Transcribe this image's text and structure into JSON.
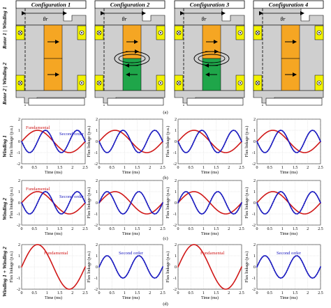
{
  "configurations": [
    {
      "title": "Configuration 1",
      "theta": "θr",
      "coil_color": "#f5a623",
      "loop": false,
      "arrows": [
        "right",
        "right"
      ]
    },
    {
      "title": "Configuration 2",
      "theta": "θr",
      "coil_color": "#f5a623",
      "loop": true,
      "arrows": [
        "right",
        "left"
      ]
    },
    {
      "title": "Configuration 3",
      "theta": "θr",
      "coil_color": "#f5a623",
      "loop": true,
      "arrows": [
        "right",
        "left"
      ]
    },
    {
      "title": "Configuration 4",
      "theta": "θr",
      "coil_color": "#f5a623",
      "loop": false,
      "arrows": [
        "right",
        "right"
      ]
    }
  ],
  "lower_coil_colors": [
    "#f5a623",
    "#1fa64a",
    "#1fa64a",
    "#f5a623"
  ],
  "row_labels": {
    "rotor1_winding1": "Rotor 1 | Winding 1",
    "rotor2_winding2": "Rotor 2 | Winding 2",
    "winding1": "Winding 1",
    "winding2": "Winding 2",
    "winding_sum": "Winding 1 + Winding 2"
  },
  "subfigure_labels": [
    "(a)",
    "(b)",
    "(c)",
    "(d)"
  ],
  "colors": {
    "fundamental": "#d01818",
    "second_order": "#1a1abf",
    "grey": "#cfcfcf",
    "yellow": "#f2f200"
  },
  "chart_data": [
    {
      "panel": "winding1-config1",
      "type": "line",
      "xlabel": "Time (ms)",
      "ylabel": "Flux linkage (p.u.)",
      "xlim": [
        0,
        2.5
      ],
      "ylim": [
        -2,
        2
      ],
      "xticks": [
        0,
        0.5,
        1,
        1.5,
        2,
        2.5
      ],
      "yticks": [
        -2,
        -1,
        0,
        1,
        2
      ],
      "series": [
        {
          "name": "Fundamental",
          "amplitude": 1,
          "cycles": 1,
          "phase_deg": 0,
          "style": "solid"
        },
        {
          "name": "Second order",
          "amplitude": 1,
          "cycles": 2,
          "phase_deg": 180,
          "style": "dotted"
        }
      ]
    },
    {
      "panel": "winding1-config2",
      "type": "line",
      "xlabel": "Time (ms)",
      "ylabel": "Flux linkage (p.u.)",
      "xlim": [
        0,
        2.5
      ],
      "ylim": [
        -2,
        2
      ],
      "xticks": [
        0,
        0.5,
        1,
        1.5,
        2,
        2.5
      ],
      "yticks": [
        -2,
        -1,
        0,
        1,
        2
      ],
      "series": [
        {
          "name": "",
          "amplitude": 1,
          "cycles": 1,
          "phase_deg": 0,
          "style": "solid"
        },
        {
          "name": "",
          "amplitude": 1,
          "cycles": 2,
          "phase_deg": 180,
          "style": "dotted"
        }
      ]
    },
    {
      "panel": "winding1-config3",
      "type": "line",
      "xlabel": "Time (ms)",
      "ylabel": "Flux linkage (p.u.)",
      "xlim": [
        0,
        2.5
      ],
      "ylim": [
        -2,
        2
      ],
      "xticks": [
        0,
        0.5,
        1,
        1.5,
        2,
        2.5
      ],
      "yticks": [
        -2,
        -1,
        0,
        1,
        2
      ],
      "series": [
        {
          "name": "",
          "amplitude": 1,
          "cycles": 1,
          "phase_deg": 0,
          "style": "solid"
        },
        {
          "name": "",
          "amplitude": 1,
          "cycles": 2,
          "phase_deg": 180,
          "style": "dotted"
        }
      ]
    },
    {
      "panel": "winding1-config4",
      "type": "line",
      "xlabel": "Time (ms)",
      "ylabel": "Flux linkage (p.u.)",
      "xlim": [
        0,
        2.5
      ],
      "ylim": [
        -2,
        2
      ],
      "xticks": [
        0,
        0.5,
        1,
        1.5,
        2,
        2.5
      ],
      "yticks": [
        -2,
        -1,
        0,
        1,
        2
      ],
      "series": [
        {
          "name": "",
          "amplitude": 1,
          "cycles": 1,
          "phase_deg": 0,
          "style": "solid"
        },
        {
          "name": "",
          "amplitude": 1,
          "cycles": 2,
          "phase_deg": 180,
          "style": "dotted"
        }
      ]
    },
    {
      "panel": "winding2-config1",
      "type": "line",
      "xlabel": "Time (ms)",
      "ylabel": "Flux linkage (p.u.)",
      "xlim": [
        0,
        2.5
      ],
      "ylim": [
        -2,
        2
      ],
      "xticks": [
        0,
        0.5,
        1,
        1.5,
        2,
        2.5
      ],
      "yticks": [
        -2,
        -1,
        0,
        1,
        2
      ],
      "series": [
        {
          "name": "Fundamental",
          "amplitude": 1,
          "cycles": 1,
          "phase_deg": 0,
          "style": "solid"
        },
        {
          "name": "Second order",
          "amplitude": 1,
          "cycles": 2,
          "phase_deg": 180,
          "style": "dotted"
        }
      ]
    },
    {
      "panel": "winding2-config2",
      "type": "line",
      "xlabel": "Time (ms)",
      "ylabel": "Flux linkage (p.u.)",
      "xlim": [
        0,
        2.5
      ],
      "ylim": [
        -2,
        2
      ],
      "xticks": [
        0,
        0.5,
        1,
        1.5,
        2,
        2.5
      ],
      "yticks": [
        -2,
        -1,
        0,
        1,
        2
      ],
      "series": [
        {
          "name": "",
          "amplitude": 1,
          "cycles": 1,
          "phase_deg": 0,
          "style": "solid"
        },
        {
          "name": "",
          "amplitude": 1,
          "cycles": 2,
          "phase_deg": 0,
          "style": "dotted"
        }
      ]
    },
    {
      "panel": "winding2-config3",
      "type": "line",
      "xlabel": "Time (ms)",
      "ylabel": "Flux linkage (p.u.)",
      "xlim": [
        0,
        2.5
      ],
      "ylim": [
        -2,
        2
      ],
      "xticks": [
        0,
        0.5,
        1,
        1.5,
        2,
        2.5
      ],
      "yticks": [
        -2,
        -1,
        0,
        1,
        2
      ],
      "series": [
        {
          "name": "",
          "amplitude": 1,
          "cycles": 1,
          "phase_deg": 0,
          "style": "solid"
        },
        {
          "name": "",
          "amplitude": 1,
          "cycles": 2,
          "phase_deg": 0,
          "style": "dotted"
        }
      ]
    },
    {
      "panel": "winding2-config4",
      "type": "line",
      "xlabel": "Time (ms)",
      "ylabel": "Flux linkage (p.u.)",
      "xlim": [
        0,
        2.5
      ],
      "ylim": [
        -2,
        2
      ],
      "xticks": [
        0,
        0.5,
        1,
        1.5,
        2,
        2.5
      ],
      "yticks": [
        -2,
        -1,
        0,
        1,
        2
      ],
      "series": [
        {
          "name": "",
          "amplitude": 1,
          "cycles": 1,
          "phase_deg": 0,
          "style": "solid"
        },
        {
          "name": "",
          "amplitude": 1,
          "cycles": 2,
          "phase_deg": 180,
          "style": "dotted"
        }
      ]
    },
    {
      "panel": "sum-config1",
      "type": "line",
      "xlabel": "Time (ms)",
      "ylabel": "Flux linkage (p.u.)",
      "xlim": [
        0,
        2.5
      ],
      "ylim": [
        -2,
        2
      ],
      "xticks": [
        0,
        0.5,
        1,
        1.5,
        2,
        2.5
      ],
      "yticks": [
        -2,
        -1,
        0,
        1,
        2
      ],
      "series": [
        {
          "name": "Fundamental",
          "amplitude": 2,
          "cycles": 1,
          "phase_deg": 0,
          "style": "solid"
        }
      ]
    },
    {
      "panel": "sum-config2",
      "type": "line",
      "xlabel": "Time (ms)",
      "ylabel": "Flux linkage (p.u.)",
      "xlim": [
        0,
        2.5
      ],
      "ylim": [
        -2,
        2
      ],
      "xticks": [
        0,
        0.5,
        1,
        1.5,
        2,
        2.5
      ],
      "yticks": [
        -2,
        -1,
        0,
        1,
        2
      ],
      "series": [
        {
          "name": "Second order",
          "amplitude": 1,
          "cycles": 2,
          "phase_deg": 0,
          "style": "dotted"
        }
      ]
    },
    {
      "panel": "sum-config3",
      "type": "line",
      "xlabel": "Time (ms)",
      "ylabel": "Flux linkage (p.u.)",
      "xlim": [
        0,
        2.5
      ],
      "ylim": [
        -2,
        2
      ],
      "xticks": [
        0,
        0.5,
        1,
        1.5,
        2,
        2.5
      ],
      "yticks": [
        -2,
        -1,
        0,
        1,
        2
      ],
      "series": [
        {
          "name": "Fundamental",
          "amplitude": 2,
          "cycles": 1,
          "phase_deg": 0,
          "style": "solid"
        }
      ]
    },
    {
      "panel": "sum-config4",
      "type": "line",
      "xlabel": "Time (ms)",
      "ylabel": "Flux linkage (p.u.)",
      "xlim": [
        0,
        2.5
      ],
      "ylim": [
        -2,
        2
      ],
      "xticks": [
        0,
        0.5,
        1,
        1.5,
        2,
        2.5
      ],
      "yticks": [
        -2,
        -1,
        0,
        1,
        2
      ],
      "series": [
        {
          "name": "Second order",
          "amplitude": 1,
          "cycles": 2,
          "phase_deg": 0,
          "style": "dotted"
        }
      ]
    }
  ]
}
